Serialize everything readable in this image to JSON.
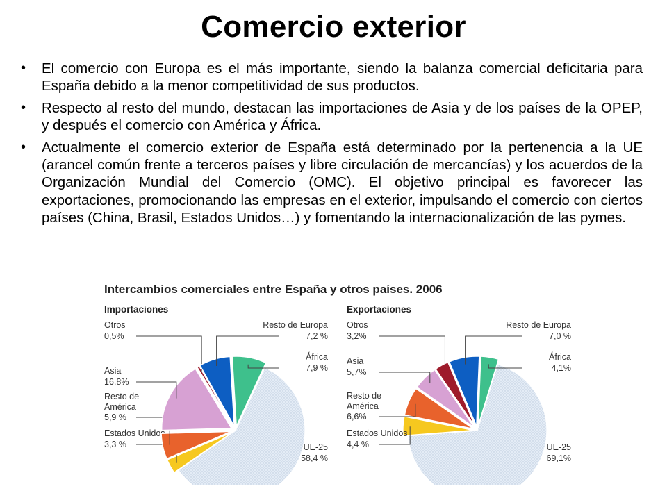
{
  "slide": {
    "title": "Comercio exterior",
    "bullets": [
      "El comercio con Europa es el más importante, siendo la balanza comercial deficitaria para España debido a la menor competitividad de sus productos.",
      "Respecto al resto del mundo, destacan las importaciones de Asia y de los países de la OPEP, y después el comercio con América y África.",
      "Actualmente el comercio exterior de España está determinado por la pertenencia a la UE (arancel común frente a terceros países y libre circulación de mercancías) y los acuerdos de la Organización Mundial del Comercio (OMC). El objetivo principal es favorecer las exportaciones, promocionando las empresas en el exterior, impulsando el comercio con ciertos países (China, Brasil, Estados Unidos…) y fomentando la internacionalización de las pymes."
    ],
    "bullet_glyph": "•"
  },
  "figure": {
    "title": "Intercambios comerciales entre España y otros países. 2006"
  },
  "chart_data": [
    {
      "type": "pie",
      "title": "Importaciones",
      "slices": [
        {
          "label": "UE-25",
          "value_label": "58,4 %",
          "value": 58.4,
          "color": "#dfe8f3"
        },
        {
          "label": "Estados Unidos",
          "value_label": "3,3 %",
          "value": 3.3,
          "color": "#f6c81f"
        },
        {
          "label": "Resto de América",
          "value_label": "5,9 %",
          "value": 5.9,
          "color": "#e8622c"
        },
        {
          "label": "Asia",
          "value_label": "16,8%",
          "value": 16.8,
          "color": "#d7a1d3"
        },
        {
          "label": "Otros",
          "value_label": "0,5%",
          "value": 0.5,
          "color": "#9e1b2b"
        },
        {
          "label": "Resto de Europa",
          "value_label": "7,2 %",
          "value": 7.2,
          "color": "#0d5ec2"
        },
        {
          "label": "África",
          "value_label": "7,9 %",
          "value": 7.9,
          "color": "#3ec08c"
        }
      ]
    },
    {
      "type": "pie",
      "title": "Exportaciones",
      "slices": [
        {
          "label": "UE-25",
          "value_label": "69,1%",
          "value": 69.1,
          "color": "#dfe8f3"
        },
        {
          "label": "Estados Unidos",
          "value_label": "4,4 %",
          "value": 4.4,
          "color": "#f6c81f"
        },
        {
          "label": "Resto de América",
          "value_label": "6,6%",
          "value": 6.6,
          "color": "#e8622c"
        },
        {
          "label": "Asia",
          "value_label": "5,7%",
          "value": 5.7,
          "color": "#d7a1d3"
        },
        {
          "label": "Otros",
          "value_label": "3,2%",
          "value": 3.2,
          "color": "#9e1b2b"
        },
        {
          "label": "Resto de Europa",
          "value_label": "7,0 %",
          "value": 7.0,
          "color": "#0d5ec2"
        },
        {
          "label": "África",
          "value_label": "4,1%",
          "value": 4.1,
          "color": "#3ec08c"
        }
      ]
    }
  ]
}
